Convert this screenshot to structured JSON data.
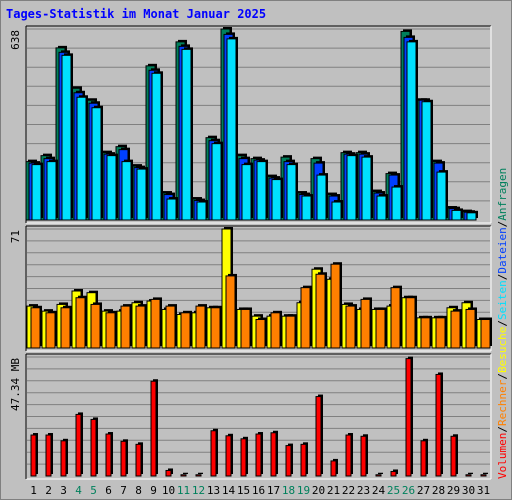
{
  "title": "Tages-Statistik im Monat Januar 2025",
  "colors": {
    "anfragen": "#00805c",
    "dateien": "#0040ff",
    "seiten": "#00e0ff",
    "besuche": "#ffff00",
    "rechner": "#ff8000",
    "volumen": "#ff0000",
    "weekend": "#00805c",
    "weekday": "#000000",
    "title": "#0000ff"
  },
  "legend": {
    "anfragen": "Anfragen",
    "dateien": "Dateien",
    "seiten": "Seiten",
    "besuche": "Besuche",
    "rechner": "Rechner",
    "volumen": "Volumen",
    "sep": "/"
  },
  "chart_data": {
    "type": "bar",
    "title": "Tages-Statistik im Monat Januar 2025",
    "categories": [
      "1",
      "2",
      "3",
      "4",
      "5",
      "6",
      "7",
      "8",
      "9",
      "10",
      "11",
      "12",
      "13",
      "14",
      "15",
      "16",
      "17",
      "18",
      "19",
      "20",
      "21",
      "22",
      "23",
      "24",
      "25",
      "26",
      "27",
      "28",
      "29",
      "30",
      "31"
    ],
    "weekend_days": [
      "4",
      "5",
      "11",
      "12",
      "18",
      "19",
      "25",
      "26"
    ],
    "panels": [
      {
        "name": "top",
        "ymax_label": "638",
        "ylim": [
          0,
          638
        ],
        "series": [
          {
            "name": "Anfragen",
            "values": [
              195,
              215,
              575,
              440,
              400,
              225,
              245,
              180,
              515,
              90,
              595,
              70,
              275,
              638,
              215,
              205,
              145,
              210,
              90,
              205,
              85,
              225,
              225,
              95,
              155,
              630,
              400,
              195,
              40,
              28,
              0
            ]
          },
          {
            "name": "Dateien",
            "values": [
              190,
              205,
              560,
              425,
              390,
              220,
              235,
              175,
              500,
              85,
              580,
              65,
              265,
              620,
              205,
              200,
              140,
              195,
              85,
              190,
              80,
              220,
              220,
              90,
              150,
              610,
              400,
              190,
              38,
              26,
              0
            ]
          },
          {
            "name": "Seiten",
            "values": [
              185,
              195,
              550,
              410,
              375,
              215,
              195,
              170,
              490,
              70,
              570,
              60,
              255,
              605,
              185,
              195,
              135,
              185,
              80,
              150,
              60,
              215,
              210,
              80,
              110,
              595,
              395,
              160,
              32,
              24,
              0
            ]
          }
        ]
      },
      {
        "name": "middle",
        "ymax_label": "71",
        "ylim": [
          0,
          71
        ],
        "series": [
          {
            "name": "Besuche",
            "values": [
              25,
              22,
              26,
              34,
              33,
              22,
              22,
              27,
              28,
              23,
              20,
              21,
              24,
              71,
              23,
              19,
              19,
              19,
              27,
              47,
              41,
              26,
              23,
              23,
              25,
              30,
              18,
              18,
              24,
              27,
              17
            ]
          },
          {
            "name": "Rechner",
            "values": [
              24,
              21,
              24,
              30,
              26,
              21,
              25,
              25,
              29,
              25,
              21,
              25,
              24,
              43,
              23,
              17,
              21,
              19,
              36,
              44,
              50,
              25,
              29,
              23,
              36,
              30,
              18,
              18,
              22,
              23,
              17
            ]
          }
        ]
      },
      {
        "name": "bottom",
        "ymax_label": "47.34 MB",
        "ylim": [
          0,
          47.34
        ],
        "series": [
          {
            "name": "Volumen",
            "values": [
              16.3,
              16.3,
              14.0,
              24.5,
              22.5,
              16.7,
              13.8,
              12.6,
              37.7,
              2.2,
              0.5,
              0.5,
              18.0,
              16.0,
              14.8,
              16.7,
              17.2,
              12.1,
              12.6,
              31.6,
              6.0,
              16.3,
              15.8,
              0.5,
              1.8,
              46.7,
              14.0,
              40.4,
              15.8,
              0.5,
              0.5
            ]
          }
        ]
      }
    ]
  }
}
